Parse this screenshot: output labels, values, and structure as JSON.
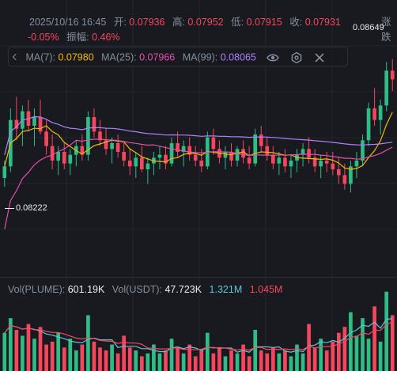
{
  "header": {
    "datetime": "2025/10/16 16:45",
    "open_label": "开:",
    "open_value": "0.07936",
    "high_label": "高:",
    "high_value": "0.07952",
    "low_label": "低:",
    "low_value": "0.07915",
    "close_label": "收:",
    "close_value": "0.07931",
    "change_label": "涨跌",
    "change_pct": "-0.05%",
    "amplitude_label": "振幅:",
    "amplitude_value": "0.46%"
  },
  "ma_legend": {
    "ma7_label": "MA(7):",
    "ma7_value": "0.07980",
    "ma25_label": "MA(25):",
    "ma25_value": "0.07966",
    "ma99_label": "MA(99):",
    "ma99_value": "0.08065"
  },
  "price_markers": {
    "low": "0.08222",
    "high": "0.08649"
  },
  "vol_legend": {
    "vol_plume_label": "Vol(PLUME):",
    "vol_plume_value": "601.19K",
    "vol_usdt_label": "Vol(USDT):",
    "vol_usdt_value": "47.723K",
    "ma_a_value": "1.321M",
    "ma_b_value": "1.045M"
  },
  "colors": {
    "up": "#f6465d",
    "down": "#2ebd85",
    "ma7": "#f0b90b",
    "ma25": "#e34fb0",
    "ma99": "#b27eff",
    "vol_ma_a": "#5ec6d8",
    "background": "#181a20"
  },
  "icons": [
    "eye-icon",
    "settings-icon",
    "close-icon"
  ],
  "chart_data": {
    "type": "candlestick",
    "price_range": [
      0.0795,
      0.087
    ],
    "candles": [
      [
        0.0825,
        0.0831,
        0.0822,
        0.0829
      ],
      [
        0.0829,
        0.0849,
        0.0827,
        0.0845
      ],
      [
        0.0845,
        0.0853,
        0.0838,
        0.0842
      ],
      [
        0.0842,
        0.085,
        0.0836,
        0.0848
      ],
      [
        0.0848,
        0.0852,
        0.0841,
        0.0843
      ],
      [
        0.0843,
        0.0849,
        0.0836,
        0.0846
      ],
      [
        0.0846,
        0.0852,
        0.084,
        0.0841
      ],
      [
        0.0841,
        0.0845,
        0.0833,
        0.0836
      ],
      [
        0.0836,
        0.084,
        0.0828,
        0.0831
      ],
      [
        0.0831,
        0.0836,
        0.0826,
        0.0834
      ],
      [
        0.0834,
        0.0837,
        0.0828,
        0.083
      ],
      [
        0.083,
        0.0835,
        0.0826,
        0.0833
      ],
      [
        0.0833,
        0.0838,
        0.0829,
        0.0836
      ],
      [
        0.0836,
        0.084,
        0.0831,
        0.0833
      ],
      [
        0.0833,
        0.0848,
        0.0831,
        0.0846
      ],
      [
        0.0846,
        0.0849,
        0.0839,
        0.0841
      ],
      [
        0.0841,
        0.0845,
        0.0836,
        0.0838
      ],
      [
        0.0838,
        0.0842,
        0.0833,
        0.0835
      ],
      [
        0.0835,
        0.0839,
        0.083,
        0.0837
      ],
      [
        0.0837,
        0.084,
        0.0832,
        0.0834
      ],
      [
        0.0834,
        0.0837,
        0.0829,
        0.0831
      ],
      [
        0.0831,
        0.0835,
        0.0826,
        0.0829
      ],
      [
        0.0829,
        0.0834,
        0.0825,
        0.0832
      ],
      [
        0.0832,
        0.0836,
        0.0827,
        0.0828
      ],
      [
        0.0828,
        0.0832,
        0.0823,
        0.083
      ],
      [
        0.083,
        0.0834,
        0.0826,
        0.0832
      ],
      [
        0.0832,
        0.0836,
        0.0828,
        0.0833
      ],
      [
        0.0833,
        0.0836,
        0.0828,
        0.083
      ],
      [
        0.083,
        0.0839,
        0.0829,
        0.0837
      ],
      [
        0.0837,
        0.0841,
        0.0832,
        0.0834
      ],
      [
        0.0834,
        0.0838,
        0.0829,
        0.0836
      ],
      [
        0.0836,
        0.0839,
        0.0831,
        0.0833
      ],
      [
        0.0833,
        0.0836,
        0.0829,
        0.0831
      ],
      [
        0.0831,
        0.0835,
        0.0827,
        0.0829
      ],
      [
        0.0829,
        0.0841,
        0.0828,
        0.0839
      ],
      [
        0.0839,
        0.0842,
        0.0833,
        0.0835
      ],
      [
        0.0835,
        0.0838,
        0.083,
        0.0832
      ],
      [
        0.0832,
        0.0836,
        0.0828,
        0.0834
      ],
      [
        0.0834,
        0.0837,
        0.0829,
        0.0831
      ],
      [
        0.0831,
        0.0836,
        0.0829,
        0.0835
      ],
      [
        0.0835,
        0.0838,
        0.083,
        0.0832
      ],
      [
        0.0832,
        0.0836,
        0.0828,
        0.083
      ],
      [
        0.083,
        0.0842,
        0.0829,
        0.084
      ],
      [
        0.084,
        0.0843,
        0.0834,
        0.0836
      ],
      [
        0.0836,
        0.0839,
        0.0831,
        0.0833
      ],
      [
        0.0833,
        0.0836,
        0.0828,
        0.083
      ],
      [
        0.083,
        0.0834,
        0.0826,
        0.0832
      ],
      [
        0.0832,
        0.0835,
        0.0827,
        0.0829
      ],
      [
        0.0829,
        0.0833,
        0.0825,
        0.0831
      ],
      [
        0.0831,
        0.0835,
        0.0827,
        0.0833
      ],
      [
        0.0833,
        0.0837,
        0.0829,
        0.0835
      ],
      [
        0.0835,
        0.0839,
        0.083,
        0.0832
      ],
      [
        0.0832,
        0.0835,
        0.0827,
        0.0829
      ],
      [
        0.0829,
        0.0833,
        0.0825,
        0.0831
      ],
      [
        0.0831,
        0.0834,
        0.0827,
        0.083
      ],
      [
        0.083,
        0.0834,
        0.0826,
        0.0828
      ],
      [
        0.0828,
        0.0832,
        0.0823,
        0.0826
      ],
      [
        0.0826,
        0.083,
        0.0821,
        0.0823
      ],
      [
        0.0823,
        0.0831,
        0.082,
        0.0829
      ],
      [
        0.0829,
        0.0834,
        0.0825,
        0.0831
      ],
      [
        0.0831,
        0.084,
        0.0829,
        0.0838
      ],
      [
        0.0838,
        0.0851,
        0.0836,
        0.0849
      ],
      [
        0.0849,
        0.0856,
        0.0843,
        0.0845
      ],
      [
        0.0845,
        0.0852,
        0.084,
        0.085
      ],
      [
        0.085,
        0.0865,
        0.0848,
        0.0862
      ],
      [
        0.0862,
        0.0866,
        0.0855,
        0.0859
      ]
    ],
    "volumes": [
      1.3,
      1.8,
      1.4,
      1.2,
      1.6,
      1.1,
      1.5,
      0.9,
      1.0,
      1.3,
      0.8,
      1.1,
      0.7,
      0.9,
      1.9,
      1.0,
      0.8,
      0.7,
      0.9,
      0.6,
      1.2,
      0.8,
      0.7,
      0.5,
      0.6,
      0.9,
      0.6,
      0.7,
      1.1,
      0.8,
      0.6,
      0.9,
      0.5,
      0.7,
      1.3,
      0.6,
      0.8,
      0.5,
      0.7,
      0.6,
      0.9,
      0.5,
      1.4,
      0.7,
      0.6,
      0.8,
      0.6,
      0.7,
      0.5,
      0.9,
      0.6,
      1.6,
      0.8,
      1.1,
      0.7,
      1.0,
      1.3,
      1.5,
      2.0,
      1.2,
      1.8,
      1.1,
      2.2,
      1.0,
      2.7,
      1.9
    ],
    "vol_range": [
      0,
      2.8
    ]
  }
}
